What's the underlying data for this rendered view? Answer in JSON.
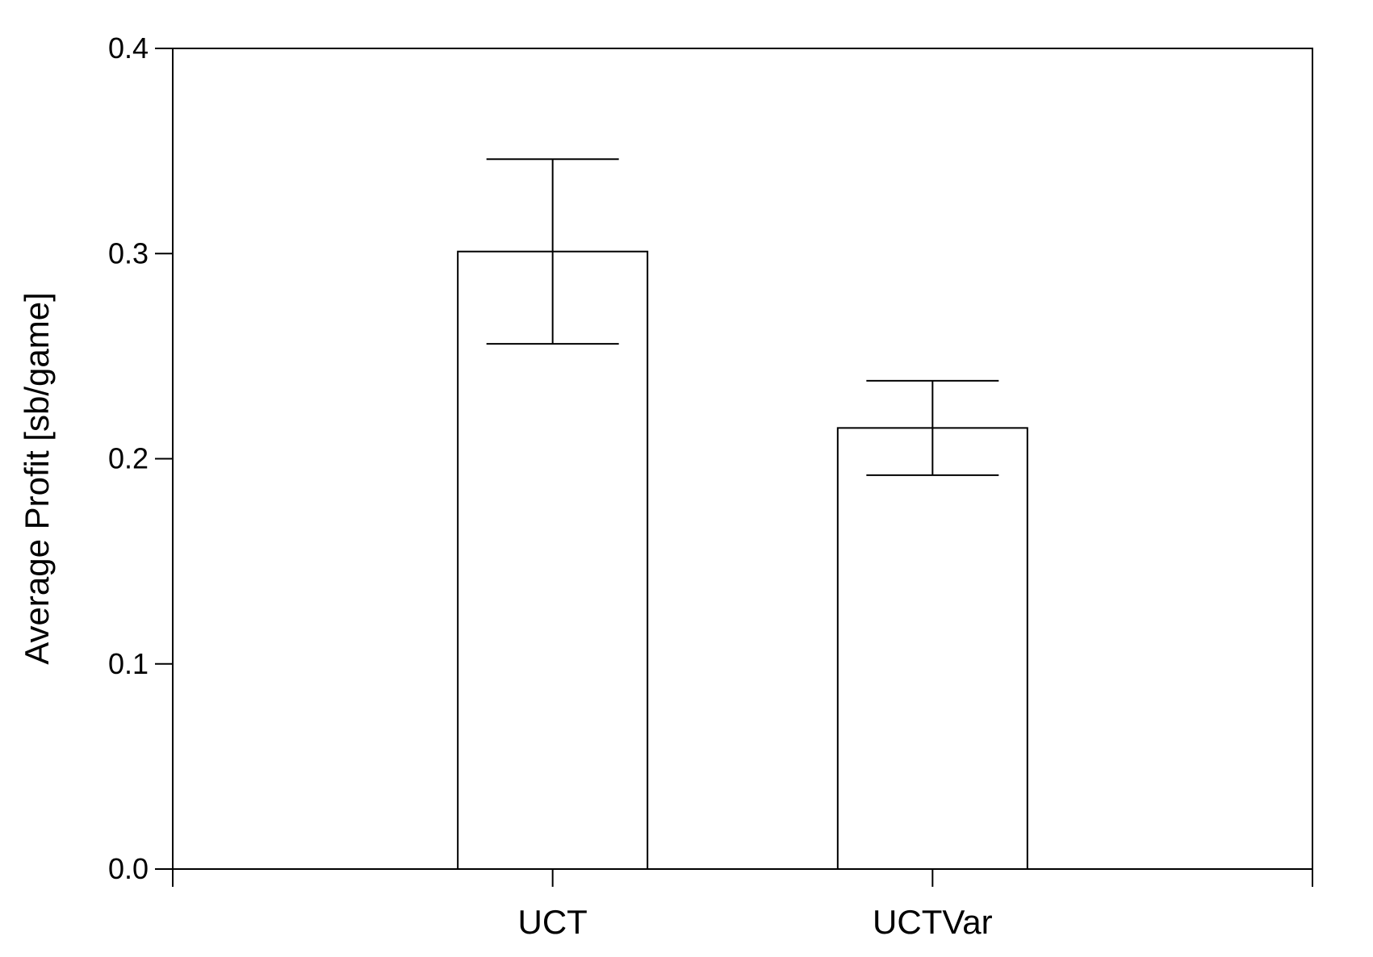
{
  "chart_data": {
    "type": "bar",
    "title": "",
    "xlabel": "",
    "ylabel": "Average Profit [sb/game]",
    "categories": [
      "UCT",
      "UCTVar"
    ],
    "values": [
      0.301,
      0.215
    ],
    "error_bars": [
      {
        "upper": 0.346,
        "lower": 0.256
      },
      {
        "upper": 0.238,
        "lower": 0.192
      }
    ],
    "ylim": [
      0.0,
      0.4
    ],
    "yticks": [
      0.0,
      0.1,
      0.2,
      0.3,
      0.4
    ],
    "ytick_labels": [
      "0.0",
      "0.1",
      "0.2",
      "0.3",
      "0.4"
    ],
    "grid": false,
    "legend": "none",
    "bar_fill": "#ffffff",
    "stroke_color": "#000000"
  }
}
